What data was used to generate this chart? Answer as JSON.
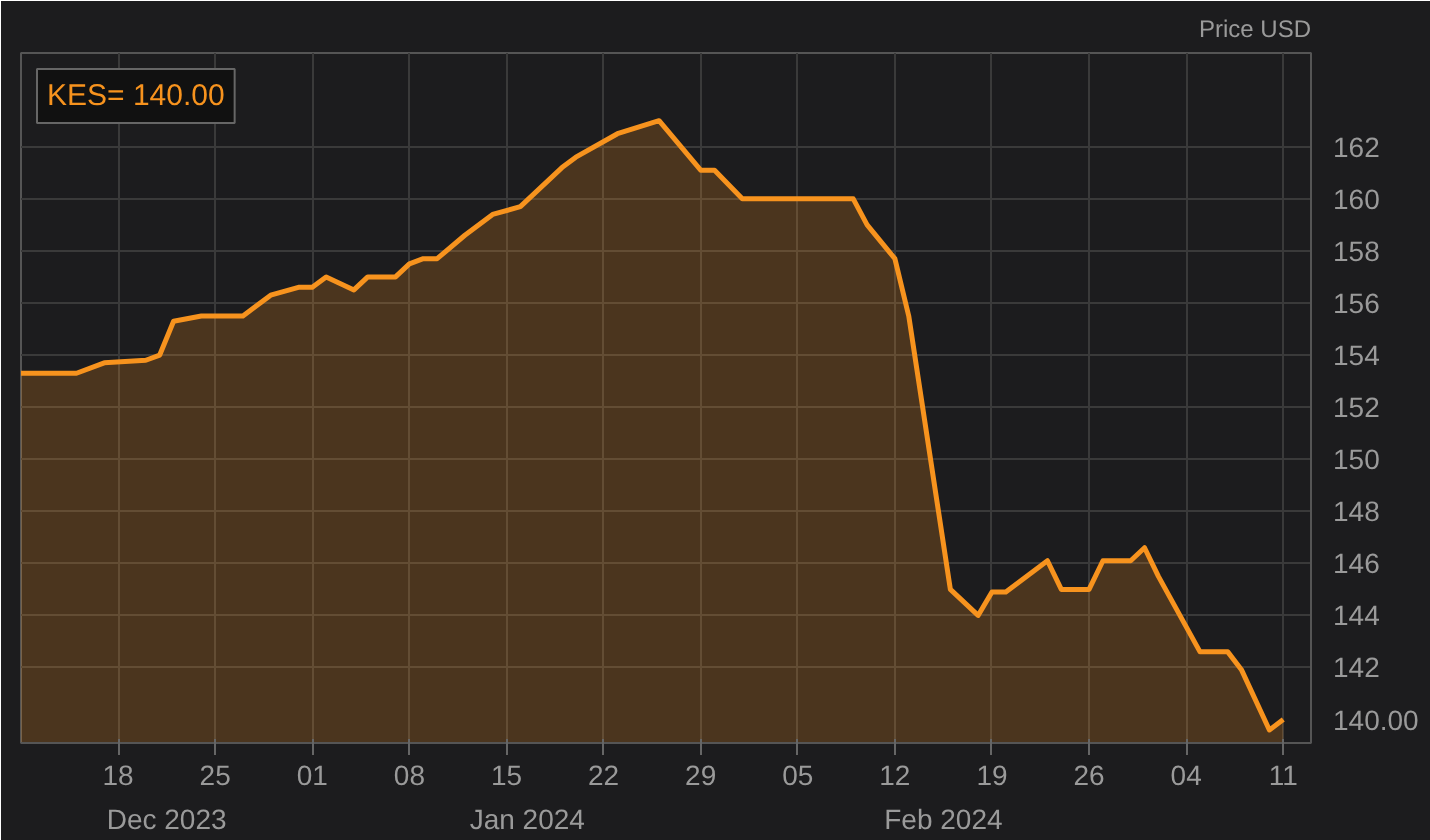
{
  "chart_data": {
    "type": "area",
    "title": "KES= 140.00",
    "ylabel": "Price USD",
    "x": [
      "2023-12-11",
      "2023-12-15",
      "2023-12-17",
      "2023-12-20",
      "2023-12-21",
      "2023-12-22",
      "2023-12-24",
      "2023-12-27",
      "2023-12-29",
      "2023-12-31",
      "2024-01-01",
      "2024-01-02",
      "2024-01-04",
      "2024-01-05",
      "2024-01-07",
      "2024-01-08",
      "2024-01-09",
      "2024-01-10",
      "2024-01-12",
      "2024-01-14",
      "2024-01-16",
      "2024-01-19",
      "2024-01-20",
      "2024-01-23",
      "2024-01-26",
      "2024-01-29",
      "2024-01-30",
      "2024-02-01",
      "2024-02-09",
      "2024-02-10",
      "2024-02-12",
      "2024-02-13",
      "2024-02-16",
      "2024-02-18",
      "2024-02-19",
      "2024-02-20",
      "2024-02-23",
      "2024-02-24",
      "2024-02-26",
      "2024-02-27",
      "2024-02-29",
      "2024-03-01",
      "2024-03-02",
      "2024-03-05",
      "2024-03-07",
      "2024-03-08",
      "2024-03-10",
      "2024-03-11"
    ],
    "series": [
      {
        "color": "#f7931e",
        "values": [
          153.3,
          153.3,
          153.7,
          153.8,
          154.0,
          155.3,
          155.5,
          155.5,
          156.3,
          156.6,
          156.6,
          157.0,
          156.5,
          157.0,
          157.0,
          157.5,
          157.7,
          157.7,
          158.6,
          159.4,
          159.7,
          161.2,
          161.6,
          162.5,
          163.0,
          161.1,
          161.1,
          160.0,
          160.0,
          159.0,
          157.7,
          155.5,
          145.0,
          144.0,
          144.9,
          144.9,
          146.1,
          145.0,
          145.0,
          146.1,
          146.1,
          146.6,
          145.5,
          142.6,
          142.6,
          141.9,
          139.6,
          140.0
        ]
      }
    ],
    "xlim": [
      "2023-12-11",
      "2024-03-13"
    ],
    "xticks": [
      {
        "value": "2023-12-18",
        "label": "18"
      },
      {
        "value": "2023-12-25",
        "label": "25"
      },
      {
        "value": "2024-01-01",
        "label": "01"
      },
      {
        "value": "2024-01-08",
        "label": "08"
      },
      {
        "value": "2024-01-15",
        "label": "15"
      },
      {
        "value": "2024-01-22",
        "label": "22"
      },
      {
        "value": "2024-01-29",
        "label": "29"
      },
      {
        "value": "2024-02-05",
        "label": "05"
      },
      {
        "value": "2024-02-12",
        "label": "12"
      },
      {
        "value": "2024-02-19",
        "label": "19"
      },
      {
        "value": "2024-02-26",
        "label": "26"
      },
      {
        "value": "2024-03-04",
        "label": "04"
      },
      {
        "value": "2024-03-11",
        "label": "11"
      }
    ],
    "ylim": [
      139.1,
      165.6
    ],
    "yticks": [
      142,
      144,
      146,
      148,
      150,
      152,
      154,
      156,
      158,
      160,
      162
    ],
    "grid": true,
    "value_labels": [
      null,
      null,
      null,
      null,
      null,
      null,
      null,
      null,
      null,
      null,
      null,
      null,
      null,
      null,
      null,
      null,
      null,
      null,
      null,
      null,
      null,
      null,
      null,
      null,
      null,
      null,
      null,
      null,
      null,
      null,
      null,
      null,
      null,
      null,
      null,
      null,
      null,
      null,
      null,
      null,
      null,
      null,
      null,
      null,
      null,
      null,
      null,
      "140.00"
    ],
    "annotations": [
      "Dec 2023",
      "Jan 2024",
      "Feb 2024"
    ]
  }
}
